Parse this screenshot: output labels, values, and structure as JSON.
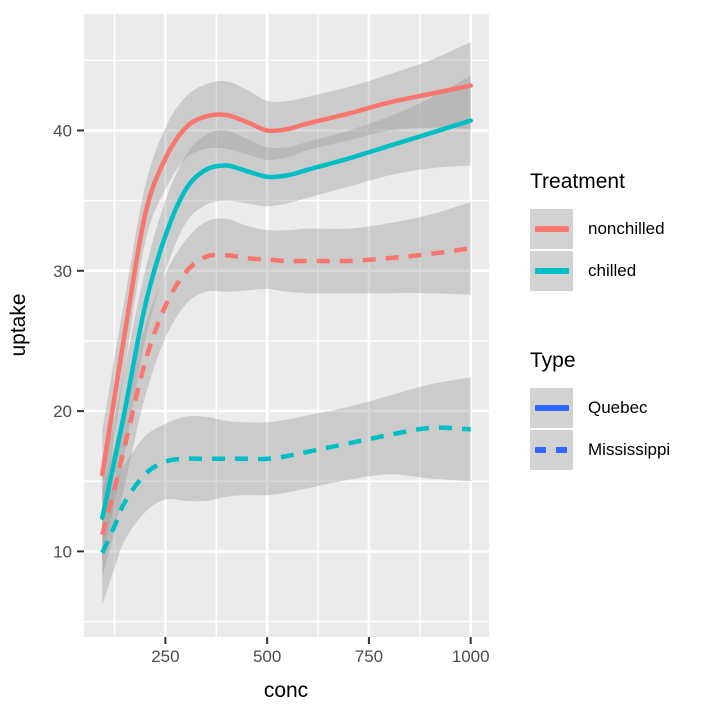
{
  "chart_data": {
    "type": "line",
    "title": "",
    "xlabel": "conc",
    "ylabel": "uptake",
    "xlim": [
      50,
      1045
    ],
    "ylim": [
      3.9,
      48.3
    ],
    "x_ticks": [
      250,
      500,
      750,
      1000
    ],
    "y_ticks": [
      10,
      20,
      30,
      40
    ],
    "x_minor": [
      125,
      375,
      625,
      875
    ],
    "y_minor": [
      5,
      15,
      25,
      35,
      45
    ],
    "grid": true,
    "legend_position": "right",
    "x": [
      95,
      125,
      150,
      200,
      250,
      300,
      350,
      400,
      450,
      500,
      550,
      600,
      700,
      800,
      900,
      1000
    ],
    "series": [
      {
        "name": "Quebec nonchilled",
        "treatment": "nonchilled",
        "type": "Quebec",
        "color": "#F8766D",
        "linetype": "solid",
        "values": [
          15.5,
          21.0,
          25.5,
          34.0,
          38.0,
          40.2,
          41.0,
          41.1,
          40.6,
          40.0,
          40.1,
          40.5,
          41.2,
          42.0,
          42.6,
          43.2
        ],
        "upper": [
          18.6,
          23.8,
          28.0,
          36.0,
          40.2,
          42.4,
          43.3,
          43.5,
          42.9,
          42.1,
          42.1,
          42.4,
          43.1,
          44.0,
          45.0,
          46.3
        ],
        "lower": [
          12.4,
          18.2,
          23.0,
          32.0,
          35.8,
          38.0,
          38.7,
          38.7,
          38.3,
          37.9,
          38.1,
          38.6,
          39.3,
          40.0,
          40.2,
          40.1
        ]
      },
      {
        "name": "Quebec chilled",
        "treatment": "chilled",
        "type": "Quebec",
        "color": "#00BFC4",
        "linetype": "solid",
        "values": [
          12.4,
          16.5,
          20.0,
          27.5,
          32.5,
          35.8,
          37.2,
          37.5,
          37.1,
          36.7,
          36.8,
          37.2,
          38.0,
          38.9,
          39.8,
          40.7
        ],
        "upper": [
          15.6,
          19.5,
          23.0,
          30.0,
          35.0,
          38.2,
          39.7,
          40.0,
          39.4,
          38.8,
          38.8,
          39.2,
          40.0,
          41.0,
          42.3,
          43.9
        ],
        "lower": [
          9.2,
          13.5,
          17.0,
          25.0,
          30.0,
          33.4,
          34.7,
          35.0,
          34.8,
          34.6,
          34.8,
          35.2,
          36.0,
          36.8,
          37.3,
          37.5
        ]
      },
      {
        "name": "Mississippi nonchilled",
        "treatment": "nonchilled",
        "type": "Mississippi",
        "color": "#F8766D",
        "linetype": "dashed",
        "values": [
          11.2,
          14.5,
          17.5,
          23.5,
          27.5,
          29.9,
          31.0,
          31.1,
          30.9,
          30.8,
          30.7,
          30.7,
          30.7,
          30.9,
          31.2,
          31.6
        ],
        "upper": [
          14.3,
          17.5,
          20.3,
          26.0,
          29.8,
          32.2,
          33.5,
          33.7,
          33.2,
          32.9,
          32.9,
          33.0,
          33.0,
          33.4,
          34.0,
          34.9
        ],
        "lower": [
          8.1,
          11.5,
          14.7,
          21.0,
          25.2,
          27.6,
          28.5,
          28.5,
          28.6,
          28.7,
          28.5,
          28.4,
          28.4,
          28.4,
          28.4,
          28.3
        ]
      },
      {
        "name": "Mississippi chilled",
        "treatment": "chilled",
        "type": "Mississippi",
        "color": "#00BFC4",
        "linetype": "dashed",
        "values": [
          9.9,
          11.8,
          13.5,
          15.5,
          16.4,
          16.6,
          16.6,
          16.6,
          16.6,
          16.6,
          16.8,
          17.1,
          17.7,
          18.3,
          18.8,
          18.7
        ],
        "upper": [
          13.1,
          14.8,
          16.2,
          18.2,
          19.1,
          19.6,
          19.6,
          19.3,
          19.2,
          19.2,
          19.4,
          19.7,
          20.3,
          21.1,
          21.9,
          22.4
        ],
        "lower": [
          6.2,
          8.8,
          10.8,
          12.8,
          13.7,
          13.6,
          13.6,
          13.9,
          14.0,
          14.0,
          14.2,
          14.5,
          15.1,
          15.5,
          15.2,
          15.0
        ]
      }
    ],
    "colors": {
      "panel_bg": "#EBEBEB",
      "grid": "#FFFFFF",
      "ribbon": "#999999",
      "axis_text": "#4D4D4D",
      "tick_mark": "#333333",
      "axis_title": "#000000",
      "key_bg": "#D2D2D2"
    }
  },
  "legend": {
    "treatment": {
      "title": "Treatment",
      "items": [
        {
          "label": "nonchilled",
          "color": "#F8766D",
          "style": "solid"
        },
        {
          "label": "chilled",
          "color": "#00BFC4",
          "style": "solid"
        }
      ]
    },
    "type": {
      "title": "Type",
      "items": [
        {
          "label": "Quebec",
          "color": "#3366FF",
          "style": "solid"
        },
        {
          "label": "Mississippi",
          "color": "#3366FF",
          "style": "dashed"
        }
      ]
    }
  }
}
